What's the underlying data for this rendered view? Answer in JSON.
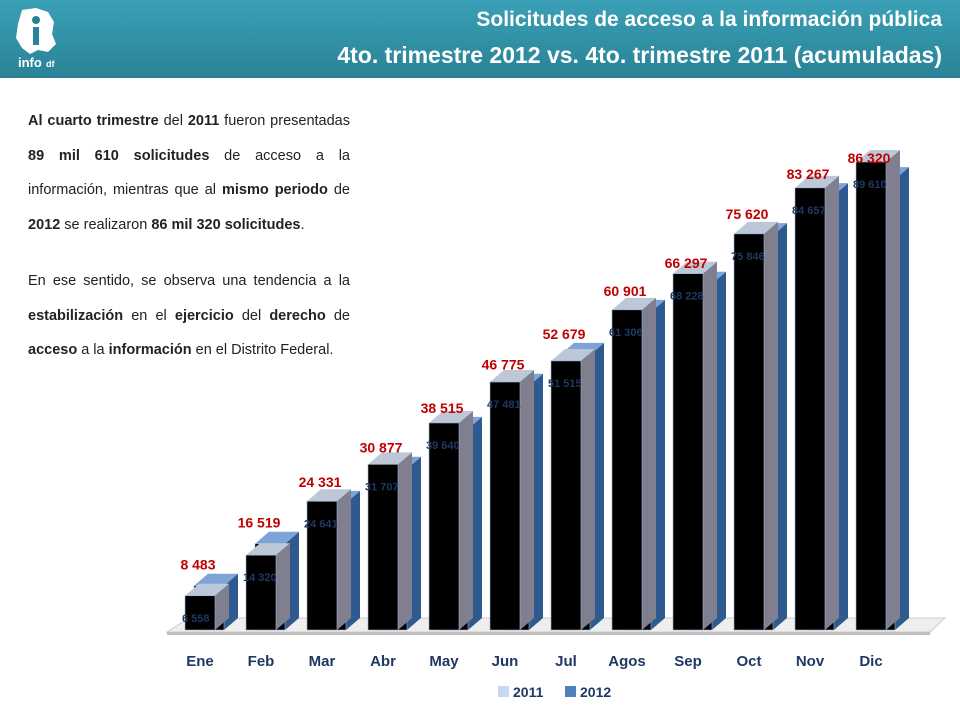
{
  "header": {
    "title_line1": "Solicitudes de acceso a la información pública",
    "title_line2": "4to. trimestre 2012 vs. 4to. trimestre 2011 (acumuladas)",
    "logo_text": "info",
    "logo_sub": "df"
  },
  "text": {
    "p1": [
      {
        "t": "Al cuarto trimestre",
        "b": true
      },
      {
        "t": " del ",
        "b": false
      },
      {
        "t": "2011",
        "b": true
      },
      {
        "t": " fueron presentadas ",
        "b": false
      },
      {
        "t": "89 mil 610 solicitudes",
        "b": true
      },
      {
        "t": " de acceso a la información, mientras que al ",
        "b": false
      },
      {
        "t": "mismo periodo",
        "b": true
      },
      {
        "t": " de ",
        "b": false
      },
      {
        "t": "2012",
        "b": true
      },
      {
        "t": " se realizaron ",
        "b": false
      },
      {
        "t": "86 mil 320 solicitudes",
        "b": true
      },
      {
        "t": ".",
        "b": false
      }
    ],
    "p2": [
      {
        "t": "En ese sentido, se observa una tendencia a la ",
        "b": false
      },
      {
        "t": "estabilización",
        "b": true
      },
      {
        "t": " en el ",
        "b": false
      },
      {
        "t": "ejercicio",
        "b": true
      },
      {
        "t": " del ",
        "b": false
      },
      {
        "t": "derecho",
        "b": true
      },
      {
        "t": " de ",
        "b": false
      },
      {
        "t": "acceso",
        "b": true
      },
      {
        "t": " a la ",
        "b": false
      },
      {
        "t": "información",
        "b": true
      },
      {
        "t": " en el Distrito Federal.",
        "b": false
      }
    ]
  },
  "chart_data": {
    "type": "bar",
    "title": "",
    "categories": [
      "Ene",
      "Feb",
      "Mar",
      "Abr",
      "May",
      "Jun",
      "Jul",
      "Agos",
      "Sep",
      "Oct",
      "Nov",
      "Dic"
    ],
    "series": [
      {
        "name": "2011",
        "values": [
          6558,
          14320,
          24641,
          31707,
          39640,
          47481,
          51515,
          61306,
          68228,
          75846,
          84657,
          89610
        ],
        "labels": [
          "6 558",
          "14 320",
          "24 641",
          "31 707",
          "39 640",
          "47 481",
          "51 515",
          "61 306",
          "68 228",
          "75 846",
          "84 657",
          "89 610"
        ],
        "color": "#c6d9f1"
      },
      {
        "name": "2012",
        "values": [
          8483,
          16519,
          24331,
          30877,
          38515,
          46775,
          52679,
          60901,
          66297,
          75620,
          83267,
          86320
        ],
        "labels": [
          "8 483",
          "16 519",
          "24 331",
          "30 877",
          "38 515",
          "46 775",
          "52 679",
          "60 901",
          "66 297",
          "75 620",
          "83 267",
          "86 320"
        ],
        "color": "#4f81bd"
      }
    ],
    "ylim": [
      0,
      92000
    ],
    "legend": "bottom",
    "grid": false
  }
}
